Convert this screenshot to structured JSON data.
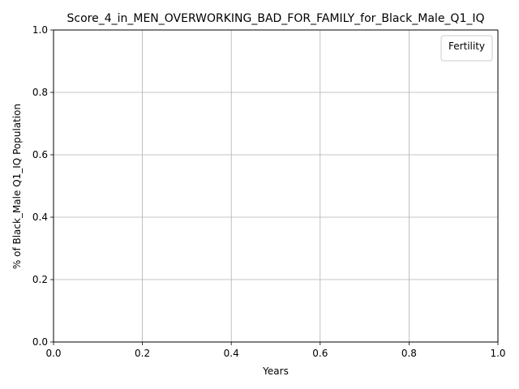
{
  "chart_data": {
    "type": "line",
    "title": "Score_4_in_MEN_OVERWORKING_BAD_FOR_FAMILY_for_Black_Male_Q1_IQ",
    "xlabel": "Years",
    "ylabel": "% of Black_Male Q1_IQ Population",
    "xlim": [
      0.0,
      1.0
    ],
    "ylim": [
      0.0,
      1.0
    ],
    "xticks": [
      "0.0",
      "0.2",
      "0.4",
      "0.6",
      "0.8",
      "1.0"
    ],
    "yticks": [
      "0.0",
      "0.2",
      "0.4",
      "0.6",
      "0.8",
      "1.0"
    ],
    "grid": true,
    "legend": {
      "title": "Fertility",
      "placement": "top-right",
      "entries": []
    },
    "series": []
  }
}
